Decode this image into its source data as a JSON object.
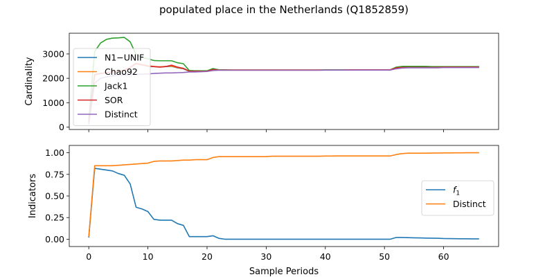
{
  "figure": {
    "title": "populated place in the Netherlands (Q1852859)"
  },
  "chart_data": [
    {
      "type": "line",
      "ylabel": "Cardinality",
      "xlim": [
        -3.3,
        69.3
      ],
      "ylim": [
        -100,
        3850
      ],
      "xticks": [
        0,
        10,
        20,
        30,
        40,
        50,
        60
      ],
      "yticks": [
        0,
        1000,
        2000,
        3000
      ],
      "ytick_labels": [
        "0",
        "1000",
        "2000",
        "3000"
      ],
      "show_xtick_labels": false,
      "legend_position": "center-left",
      "x": [
        0,
        1,
        2,
        3,
        4,
        5,
        6,
        7,
        8,
        9,
        10,
        11,
        12,
        13,
        14,
        15,
        16,
        17,
        18,
        19,
        20,
        21,
        22,
        23,
        24,
        25,
        26,
        27,
        28,
        29,
        30,
        31,
        32,
        33,
        34,
        35,
        36,
        37,
        38,
        39,
        40,
        41,
        42,
        43,
        44,
        45,
        46,
        47,
        48,
        49,
        50,
        51,
        52,
        53,
        54,
        55,
        56,
        57,
        58,
        59,
        60,
        61,
        62,
        63,
        64,
        65,
        66
      ],
      "series": [
        {
          "name": "N1−UNIF",
          "color": "#1f77b4",
          "values": [
            200,
            2150,
            2200,
            2230,
            2260,
            2280,
            2330,
            2450,
            2600,
            2550,
            2500,
            2480,
            2470,
            2480,
            2490,
            2430,
            2390,
            2290,
            2290,
            2290,
            2290,
            2360,
            2340,
            2340,
            2340,
            2340,
            2340,
            2340,
            2340,
            2340,
            2340,
            2340,
            2340,
            2340,
            2340,
            2340,
            2340,
            2340,
            2340,
            2340,
            2340,
            2340,
            2340,
            2340,
            2350,
            2350,
            2350,
            2350,
            2350,
            2350,
            2350,
            2350,
            2440,
            2460,
            2460,
            2460,
            2460,
            2460,
            2460,
            2460,
            2470,
            2470,
            2470,
            2470,
            2470,
            2470,
            2470
          ]
        },
        {
          "name": "Chao92",
          "color": "#ff7f0e",
          "values": [
            200,
            2150,
            2200,
            2230,
            2260,
            2280,
            2330,
            2460,
            2620,
            2570,
            2520,
            2490,
            2470,
            2490,
            2500,
            2440,
            2400,
            2300,
            2300,
            2300,
            2300,
            2360,
            2340,
            2340,
            2340,
            2340,
            2340,
            2340,
            2340,
            2340,
            2340,
            2340,
            2340,
            2340,
            2340,
            2340,
            2340,
            2340,
            2340,
            2340,
            2340,
            2340,
            2340,
            2340,
            2350,
            2350,
            2350,
            2350,
            2350,
            2350,
            2350,
            2350,
            2440,
            2460,
            2460,
            2460,
            2460,
            2460,
            2460,
            2460,
            2470,
            2470,
            2470,
            2470,
            2470,
            2470,
            2470
          ]
        },
        {
          "name": "Jack1",
          "color": "#2ca02c",
          "values": [
            300,
            3100,
            3450,
            3600,
            3650,
            3660,
            3680,
            3500,
            2980,
            2850,
            2800,
            2730,
            2720,
            2720,
            2720,
            2640,
            2600,
            2320,
            2310,
            2310,
            2310,
            2400,
            2350,
            2350,
            2340,
            2340,
            2340,
            2340,
            2340,
            2340,
            2340,
            2340,
            2340,
            2340,
            2340,
            2340,
            2340,
            2340,
            2340,
            2340,
            2350,
            2350,
            2350,
            2350,
            2350,
            2350,
            2350,
            2350,
            2350,
            2350,
            2350,
            2350,
            2460,
            2490,
            2490,
            2490,
            2490,
            2490,
            2480,
            2480,
            2480,
            2480,
            2480,
            2480,
            2480,
            2480,
            2480
          ]
        },
        {
          "name": "SOR",
          "color": "#d62728",
          "values": [
            200,
            2150,
            2200,
            2230,
            2260,
            2280,
            2330,
            2450,
            2600,
            2550,
            2500,
            2480,
            2460,
            2480,
            2540,
            2460,
            2410,
            2290,
            2290,
            2290,
            2290,
            2360,
            2340,
            2340,
            2340,
            2340,
            2340,
            2340,
            2340,
            2340,
            2340,
            2340,
            2340,
            2340,
            2340,
            2340,
            2340,
            2340,
            2340,
            2340,
            2340,
            2340,
            2340,
            2340,
            2350,
            2350,
            2350,
            2350,
            2350,
            2350,
            2350,
            2350,
            2430,
            2450,
            2450,
            2450,
            2450,
            2450,
            2450,
            2450,
            2460,
            2460,
            2460,
            2460,
            2460,
            2460,
            2460
          ]
        },
        {
          "name": "Distinct",
          "color": "#9467bd",
          "values": [
            100,
            1800,
            2000,
            2060,
            2100,
            2120,
            2140,
            2150,
            2160,
            2170,
            2180,
            2200,
            2210,
            2220,
            2220,
            2230,
            2240,
            2260,
            2260,
            2270,
            2280,
            2320,
            2330,
            2330,
            2330,
            2330,
            2330,
            2330,
            2330,
            2330,
            2330,
            2330,
            2330,
            2330,
            2330,
            2330,
            2330,
            2330,
            2330,
            2330,
            2340,
            2340,
            2340,
            2340,
            2340,
            2340,
            2340,
            2340,
            2340,
            2340,
            2340,
            2340,
            2390,
            2420,
            2430,
            2430,
            2430,
            2430,
            2430,
            2430,
            2440,
            2440,
            2440,
            2440,
            2440,
            2440,
            2440
          ]
        }
      ]
    },
    {
      "type": "line",
      "ylabel": "Indicators",
      "xlabel": "Sample Periods",
      "xlim": [
        -3.3,
        69.3
      ],
      "ylim": [
        -0.085,
        1.085
      ],
      "xticks": [
        0,
        10,
        20,
        30,
        40,
        50,
        60
      ],
      "xtick_labels": [
        "0",
        "10",
        "20",
        "30",
        "40",
        "50",
        "60"
      ],
      "yticks": [
        0,
        0.25,
        0.5,
        0.75,
        1.0
      ],
      "ytick_labels": [
        "0.00",
        "0.25",
        "0.50",
        "0.75",
        "1.00"
      ],
      "show_xtick_labels": true,
      "legend_position": "center-right",
      "x": [
        0,
        1,
        2,
        3,
        4,
        5,
        6,
        7,
        8,
        9,
        10,
        11,
        12,
        13,
        14,
        15,
        16,
        17,
        18,
        19,
        20,
        21,
        22,
        23,
        24,
        25,
        26,
        27,
        28,
        29,
        30,
        31,
        32,
        33,
        34,
        35,
        36,
        37,
        38,
        39,
        40,
        41,
        42,
        43,
        44,
        45,
        46,
        47,
        48,
        49,
        50,
        51,
        52,
        53,
        54,
        55,
        56,
        57,
        58,
        59,
        60,
        61,
        62,
        63,
        64,
        65,
        66
      ],
      "series": [
        {
          "name": "f1",
          "name_base": "f",
          "name_sub": "1",
          "color": "#1f77b4",
          "values": [
            0.02,
            0.82,
            0.81,
            0.8,
            0.79,
            0.76,
            0.74,
            0.64,
            0.37,
            0.35,
            0.32,
            0.23,
            0.22,
            0.22,
            0.22,
            0.18,
            0.16,
            0.03,
            0.03,
            0.03,
            0.03,
            0.04,
            0.01,
            0.0,
            0.0,
            0.0,
            0.0,
            0.0,
            0.0,
            0.0,
            0.0,
            0.0,
            0.0,
            0.0,
            0.0,
            0.0,
            0.0,
            0.0,
            0.0,
            0.0,
            0.0,
            0.0,
            0.0,
            0.0,
            0.0,
            0.0,
            0.0,
            0.0,
            0.0,
            0.0,
            0.0,
            0.0,
            0.02,
            0.02,
            0.018,
            0.016,
            0.015,
            0.013,
            0.012,
            0.011,
            0.008,
            0.007,
            0.006,
            0.005,
            0.005,
            0.004,
            0.004
          ]
        },
        {
          "name": "Distinct",
          "color": "#ff7f0e",
          "values": [
            0.03,
            0.85,
            0.85,
            0.85,
            0.85,
            0.855,
            0.86,
            0.865,
            0.87,
            0.875,
            0.88,
            0.9,
            0.905,
            0.905,
            0.905,
            0.91,
            0.915,
            0.915,
            0.92,
            0.92,
            0.92,
            0.945,
            0.955,
            0.955,
            0.955,
            0.955,
            0.955,
            0.955,
            0.955,
            0.955,
            0.955,
            0.96,
            0.96,
            0.96,
            0.96,
            0.96,
            0.96,
            0.96,
            0.96,
            0.96,
            0.962,
            0.962,
            0.963,
            0.963,
            0.963,
            0.963,
            0.963,
            0.963,
            0.963,
            0.963,
            0.963,
            0.963,
            0.98,
            0.99,
            0.995,
            0.995,
            0.995,
            0.995,
            0.996,
            0.997,
            0.998,
            0.998,
            0.999,
            0.999,
            1.0,
            1.0,
            1.0
          ]
        }
      ]
    }
  ]
}
